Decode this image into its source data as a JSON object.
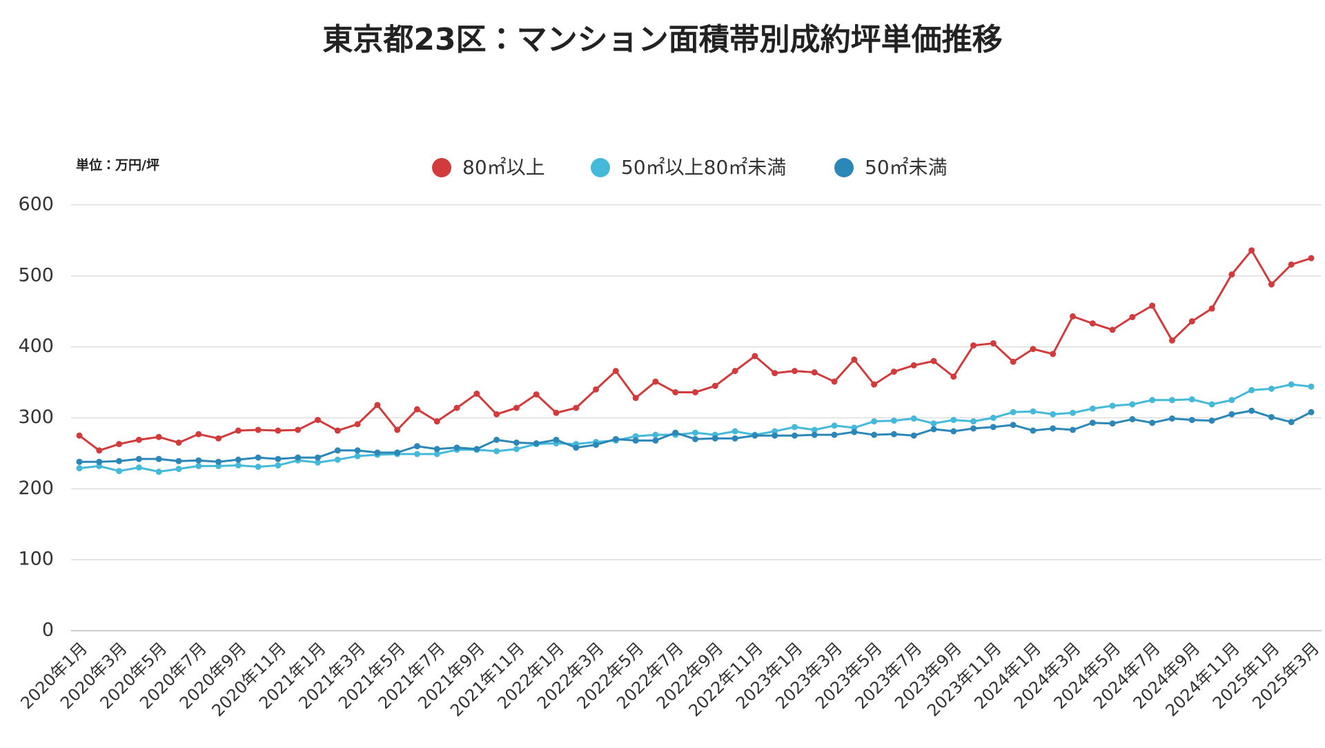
{
  "chart_data": {
    "type": "line",
    "title": "東京都23区：マンション面積帯別成約坪単価推移",
    "y_label": "単位：万円/坪",
    "categories": [
      "2020年1月",
      null,
      "2020年3月",
      null,
      "2020年5月",
      null,
      "2020年7月",
      null,
      "2020年9月",
      null,
      "2020年11月",
      null,
      "2021年1月",
      null,
      "2021年3月",
      null,
      "2021年5月",
      null,
      "2021年7月",
      null,
      "2021年9月",
      null,
      "2021年11月",
      null,
      "2022年1月",
      null,
      "2022年3月",
      null,
      "2022年5月",
      null,
      "2022年7月",
      null,
      "2022年9月",
      null,
      "2022年11月",
      null,
      "2023年1月",
      null,
      "2023年3月",
      null,
      "2023年5月",
      null,
      "2023年7月",
      null,
      "2023年9月",
      null,
      "2023年11月",
      null,
      "2024年1月",
      null,
      "2024年3月",
      null,
      "2024年5月",
      null,
      "2024年7月",
      null,
      "2024年9月",
      null,
      "2024年11月",
      null,
      "2025年1月",
      null,
      "2025年3月"
    ],
    "series": [
      {
        "name": "80㎡以上",
        "color": "#d13b3b",
        "values": [
          275,
          254,
          263,
          269,
          273,
          265,
          277,
          271,
          282,
          283,
          282,
          283,
          297,
          282,
          291,
          318,
          283,
          312,
          295,
          314,
          334,
          305,
          314,
          333,
          307,
          314,
          340,
          366,
          328,
          351,
          336,
          336,
          345,
          366,
          387,
          363,
          366,
          364,
          351,
          382,
          347,
          365,
          374,
          380,
          358,
          402,
          405,
          379,
          397,
          390,
          443,
          433,
          424,
          442,
          458,
          409,
          436,
          454,
          502,
          536,
          488,
          516,
          525
        ]
      },
      {
        "name": "50㎡以上80㎡未満",
        "color": "#45b9d9",
        "values": [
          229,
          232,
          225,
          230,
          224,
          228,
          232,
          232,
          233,
          231,
          233,
          240,
          237,
          241,
          246,
          248,
          249,
          249,
          249,
          255,
          255,
          253,
          256,
          263,
          264,
          263,
          266,
          268,
          274,
          276,
          276,
          279,
          276,
          281,
          276,
          281,
          287,
          283,
          289,
          286,
          295,
          296,
          299,
          292,
          297,
          295,
          300,
          308,
          309,
          305,
          307,
          313,
          317,
          319,
          325,
          325,
          326,
          319,
          325,
          339,
          341,
          347,
          344
        ]
      },
      {
        "name": "50㎡未満",
        "color": "#2a87b8",
        "values": [
          238,
          238,
          239,
          242,
          242,
          239,
          240,
          238,
          241,
          244,
          242,
          244,
          244,
          254,
          254,
          251,
          251,
          260,
          256,
          258,
          256,
          269,
          265,
          264,
          269,
          258,
          262,
          270,
          268,
          268,
          279,
          270,
          271,
          271,
          275,
          275,
          275,
          276,
          276,
          280,
          276,
          277,
          275,
          284,
          281,
          285,
          287,
          290,
          282,
          285,
          283,
          293,
          292,
          298,
          293,
          299,
          297,
          296,
          305,
          310,
          301,
          294,
          308
        ]
      }
    ],
    "ylim": [
      0,
      600
    ],
    "yticks": [
      0,
      100,
      200,
      300,
      400,
      500,
      600
    ],
    "grid": true
  }
}
